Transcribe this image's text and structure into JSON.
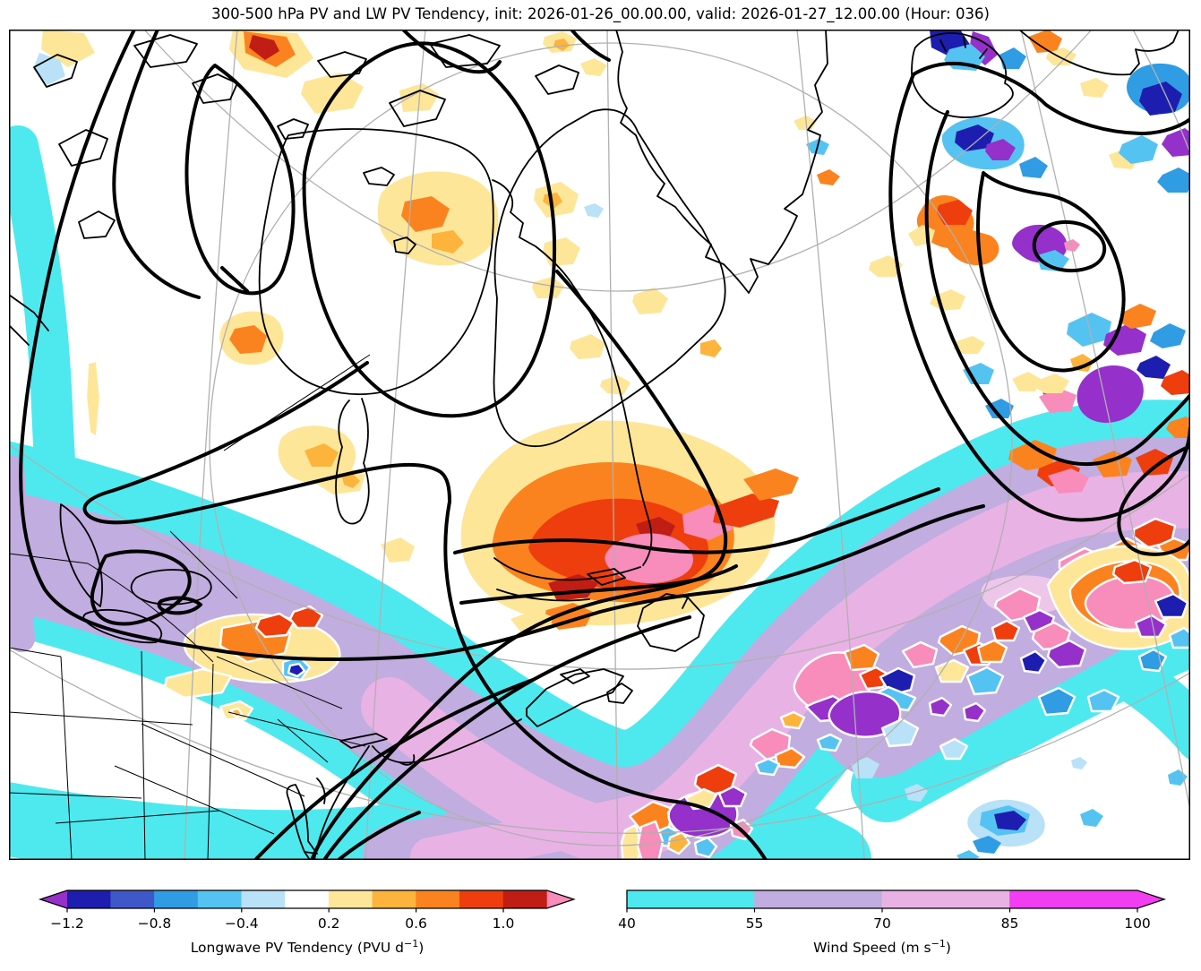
{
  "chart_data": {
    "type": "map_filled_contour",
    "title": "300-500 hPa PV and LW PV Tendency, init: 2026-01-26_00.00.00, valid: 2026-01-27_12.00.00 (Hour: 036)",
    "projection": "polar stereographic view of North America, Greenland, Iceland and the North Atlantic",
    "colorbars": [
      {
        "id": "lw-pv-tendency",
        "label_prefix": "Longwave PV Tendency (PVU d",
        "label_sup": "−1",
        "label_suffix": ")",
        "tick_labels": [
          "−1.2",
          "−0.8",
          "−0.4",
          "0.2",
          "0.6",
          "1.0"
        ],
        "tick_boundaries": [
          0,
          2,
          4,
          6,
          8,
          10
        ],
        "levels": [
          -1.2,
          -1.0,
          -0.8,
          -0.6,
          -0.4,
          -0.2,
          0.2,
          0.4,
          0.6,
          0.8,
          1.0,
          1.2
        ],
        "segments": [
          "#1d1db0",
          "#3f58c9",
          "#2f9ce3",
          "#55c3f2",
          "#b9e1f7",
          "#ffffff",
          "#fee699",
          "#fdb43c",
          "#fb831f",
          "#ee3e0d",
          "#c01d15"
        ],
        "extend_left": "#9530cb",
        "extend_right": "#f88cbb"
      },
      {
        "id": "wind-speed",
        "label_prefix": "Wind Speed (m s",
        "label_sup": "−1",
        "label_suffix": ")",
        "tick_labels": [
          "40",
          "55",
          "70",
          "85",
          "100"
        ],
        "tick_boundaries": [
          0,
          1,
          2,
          3,
          4
        ],
        "levels": [
          40,
          55,
          70,
          85,
          100
        ],
        "segments": [
          "#4ee9ef",
          "#c1addf",
          "#e9b2e5",
          "#f23ef2"
        ],
        "extend_left": null,
        "extend_right": "#f23ef2"
      }
    ],
    "map_features": [
      "Thick black contours: 300-500 hPa potential vorticity (dynamic tropopause), with large troughs over eastern Canada and a spiral cut-off low near Iceland",
      "Warm (yellow-orange-red, pink core) longwave PV tendency maxima over the Gulf of St. Lawrence, southern Ontario and in a speckled chain along the North Atlantic jet",
      "Cool (blue-navy-purple) longwave PV tendency patches inside the Iceland spiral, along the northeast Atlantic and in the top-right sector",
      "Jet stream wind-speed band (cyan 40+, lavender 55+, orchid 70+ m/s) sweeping from the central United States across the western Atlantic and northeast toward Iceland",
      "Gray lines: latitude/longitude graticule; thin black lines: coastlines, lakes and state borders"
    ]
  },
  "colors": {
    "background": "#ffffff",
    "graticule": "#b0b0b0",
    "coastline": "#000000",
    "pv_contour": "#000000",
    "jet_cyan": "#4ee9ef",
    "jet_lavender": "#c1addf",
    "jet_orchid": "#e9b2e5"
  }
}
